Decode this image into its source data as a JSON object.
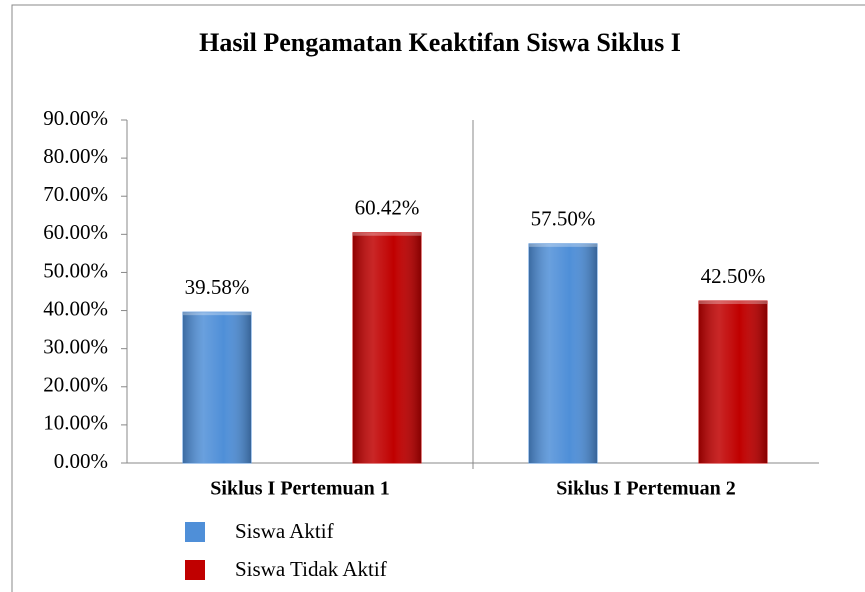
{
  "chart_data": {
    "type": "bar",
    "title": "Hasil Pengamatan Keaktifan Siswa Siklus I",
    "categories": [
      "Siklus I Pertemuan 1",
      "Siklus I Pertemuan 2"
    ],
    "series": [
      {
        "name": "Siswa Aktif",
        "color": "#4f8fd8",
        "values": [
          39.58,
          57.5
        ],
        "value_labels": [
          "39.58%",
          "57.50%"
        ]
      },
      {
        "name": "Siswa Tidak Aktif",
        "color": "#c00000",
        "values": [
          60.42,
          42.5
        ],
        "value_labels": [
          "60.42%",
          "42.50%"
        ]
      }
    ],
    "ylim": [
      0,
      90
    ],
    "yticks": [
      {
        "value": 0,
        "label": "0.00%"
      },
      {
        "value": 10,
        "label": "10.00%"
      },
      {
        "value": 20,
        "label": "20.00%"
      },
      {
        "value": 30,
        "label": "30.00%"
      },
      {
        "value": 40,
        "label": "40.00%"
      },
      {
        "value": 50,
        "label": "50.00%"
      },
      {
        "value": 60,
        "label": "60.00%"
      },
      {
        "value": 70,
        "label": "70.00%"
      },
      {
        "value": 80,
        "label": "80.00%"
      },
      {
        "value": 90,
        "label": "90.00%"
      }
    ],
    "grid": false,
    "legend": "bottom"
  }
}
